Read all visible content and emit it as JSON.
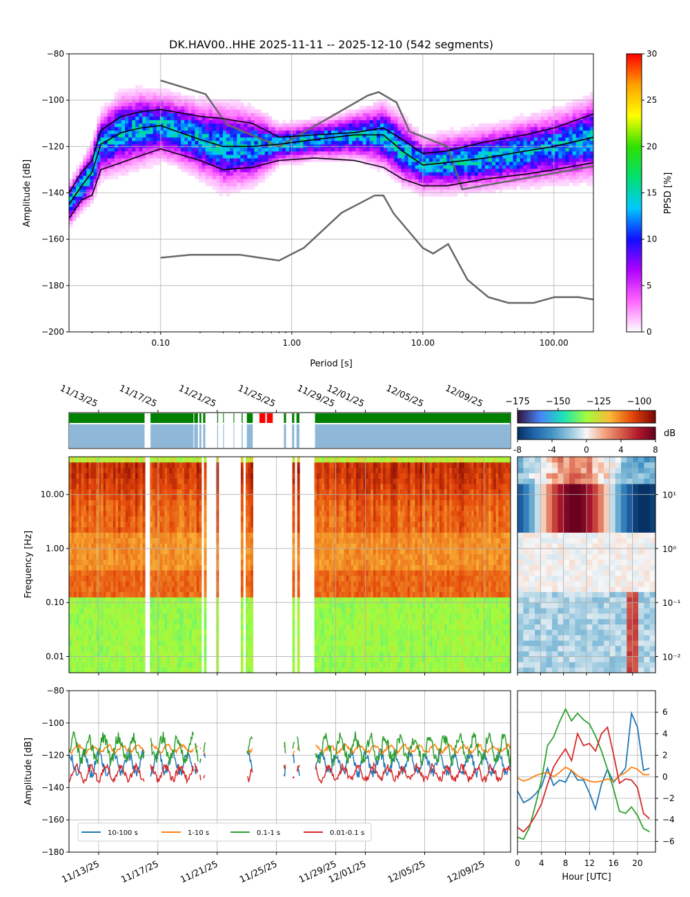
{
  "chart_data": [
    {
      "type": "heatmap",
      "name": "ppsd",
      "title": "DK.HAV00..HHE   2025-11-11 -- 2025-12-10  (542 segments)",
      "xlabel": "Period [s]",
      "ylabel": "Amplitude [dB]",
      "x_scale": "log",
      "xlim": [
        0.02,
        200
      ],
      "ylim": [
        -200,
        -80
      ],
      "x_ticks": [
        0.1,
        1,
        10,
        100
      ],
      "x_tick_labels": [
        "0.10",
        "1.00",
        "10.00",
        "100.00"
      ],
      "y_ticks": [
        -200,
        -180,
        -160,
        -140,
        -120,
        -100,
        -80
      ],
      "y_tick_labels": [
        "−200",
        "−180",
        "−160",
        "−140",
        "−120",
        "−100",
        "−80"
      ],
      "grid": true,
      "colorbar": {
        "label": "PPSD [%]",
        "range": [
          0,
          30
        ],
        "ticks": [
          "0",
          "5",
          "10",
          "15",
          "20",
          "25",
          "30"
        ],
        "colormap": [
          "#ffffff",
          "#ff66ff",
          "#b000ff",
          "#1010ff",
          "#00c8ff",
          "#00e070",
          "#30e000",
          "#ffff00",
          "#ffa000",
          "#ff0000"
        ]
      },
      "curves": [
        {
          "name": "nhnm",
          "color": "#666666",
          "x": [
            0.1,
            0.22,
            0.32,
            0.8,
            3.8,
            4.6,
            6.3,
            7.9,
            15.4,
            20,
            354.8
          ],
          "y": [
            -91.5,
            -97.4,
            -110.5,
            -120,
            -98,
            -96.5,
            -101,
            -113.5,
            -120,
            -138.5,
            -126
          ]
        },
        {
          "name": "nlnm",
          "color": "#666666",
          "x": [
            0.1,
            0.17,
            0.4,
            0.8,
            1.24,
            2.4,
            4.3,
            5,
            6,
            10,
            12,
            15.6,
            21.9,
            31.6,
            45,
            70,
            101,
            154,
            200
          ],
          "y": [
            -168,
            -166.7,
            -166.7,
            -169.2,
            -163.7,
            -148.6,
            -141.1,
            -141.1,
            -149,
            -163.8,
            -166.2,
            -162.1,
            -177.5,
            -185,
            -187.5,
            -187.5,
            -185,
            -185,
            -186
          ]
        },
        {
          "name": "percentile-upper",
          "color": "#000000",
          "x": [
            0.02,
            0.025,
            0.03,
            0.035,
            0.05,
            0.07,
            0.1,
            0.2,
            0.3,
            0.5,
            0.8,
            1.5,
            3,
            5,
            7,
            10,
            15,
            30,
            60,
            100,
            200
          ],
          "y": [
            -140,
            -131,
            -126,
            -113,
            -107,
            -105,
            -104,
            -107,
            -108,
            -110,
            -116,
            -115,
            -114,
            -112,
            -117,
            -123,
            -122,
            -118,
            -115,
            -112,
            -106
          ]
        },
        {
          "name": "percentile-median",
          "color": "#000000",
          "x": [
            0.02,
            0.025,
            0.03,
            0.035,
            0.05,
            0.07,
            0.1,
            0.2,
            0.3,
            0.5,
            0.8,
            1.5,
            3,
            5,
            7,
            10,
            15,
            30,
            60,
            100,
            200
          ],
          "y": [
            -145,
            -137,
            -131,
            -119,
            -114,
            -112,
            -111,
            -117,
            -120,
            -120,
            -119,
            -117,
            -115,
            -115,
            -122,
            -128,
            -127,
            -125,
            -122,
            -120,
            -116
          ]
        },
        {
          "name": "percentile-lower",
          "color": "#000000",
          "x": [
            0.02,
            0.025,
            0.03,
            0.035,
            0.05,
            0.07,
            0.1,
            0.2,
            0.3,
            0.5,
            0.8,
            1.5,
            3,
            5,
            7,
            10,
            15,
            30,
            60,
            100,
            200
          ],
          "y": [
            -151,
            -143,
            -141,
            -130,
            -127,
            -124,
            -121,
            -126,
            -130,
            -129,
            -126,
            -125,
            -126,
            -129,
            -134,
            -137,
            -137,
            -134,
            -132,
            -130,
            -127
          ]
        }
      ]
    },
    {
      "type": "table",
      "name": "data-availability",
      "description_free": true,
      "x_tick_labels": [
        "11/13/25",
        "11/17/25",
        "11/21/25",
        "11/25/25",
        "11/29/25",
        "12/01/25",
        "12/05/25",
        "12/09/25"
      ],
      "x_tick_days": [
        2,
        6,
        10,
        14,
        18,
        20,
        24,
        28
      ],
      "coverage": [
        [
          0,
          5.1
        ],
        [
          5.5,
          8.4
        ],
        [
          8.45,
          8.7
        ],
        [
          8.8,
          8.93
        ],
        [
          9.05,
          9.2
        ],
        [
          10.0,
          10.06
        ],
        [
          10.4,
          10.45
        ],
        [
          11.1,
          11.15
        ],
        [
          11.65,
          11.72
        ],
        [
          12.0,
          12.4
        ],
        [
          14.5,
          14.65
        ],
        [
          15.05,
          15.2
        ],
        [
          15.35,
          15.55
        ],
        [
          16.6,
          29.8
        ]
      ],
      "overlaps": [
        [
          12.85,
          13.25
        ],
        [
          13.35,
          13.75
        ]
      ],
      "colors": {
        "data": "#008000",
        "gaps_band": "#8fb8d8",
        "overlap": "#ff0000"
      }
    },
    {
      "type": "heatmap",
      "name": "spectrogram",
      "ylabel": "Frequency [Hz]",
      "y_scale": "log",
      "ylim": [
        0.005,
        50
      ],
      "y_ticks": [
        0.01,
        0.1,
        1,
        10
      ],
      "y_tick_labels": [
        "0.01",
        "0.10",
        "1.00",
        "10.00"
      ],
      "colorbar": {
        "range": [
          -175,
          -90
        ],
        "ticks": [
          "−175",
          "−150",
          "−125",
          "−100"
        ],
        "colormap": [
          "#30123b",
          "#4686fb",
          "#1ae4b6",
          "#a2fc3c",
          "#faba39",
          "#e4460a",
          "#7a0403"
        ]
      }
    },
    {
      "type": "heatmap",
      "name": "daily-deviation",
      "y_scale": "log",
      "y_tick_labels": [
        "10¹",
        "10⁰",
        "10⁻¹",
        "10⁻²"
      ],
      "x_ticks": [
        0,
        4,
        8,
        12,
        16,
        20
      ],
      "colorbar": {
        "label": "dB",
        "range": [
          -8,
          8
        ],
        "ticks": [
          "-8",
          "-4",
          "0",
          "4",
          "8"
        ],
        "colormap": [
          "#053061",
          "#2166ac",
          "#4393c3",
          "#92c5de",
          "#f7f7f7",
          "#f4a582",
          "#d6604d",
          "#b2182b",
          "#67001f"
        ]
      }
    },
    {
      "type": "line",
      "name": "band-amplitude",
      "ylabel": "Amplitude [dB]",
      "ylim": [
        -180,
        -80
      ],
      "y_tick_labels": [
        "−180",
        "−160",
        "−140",
        "−120",
        "−100",
        "−80"
      ],
      "x_tick_labels": [
        "11/13/25",
        "11/17/25",
        "11/21/25",
        "11/25/25",
        "11/29/25",
        "12/01/25",
        "12/05/25",
        "12/09/25"
      ],
      "legend": "lower-left",
      "series": [
        {
          "name": "10-100 s",
          "color": "#1f77b4",
          "mean": -125,
          "amp": 6
        },
        {
          "name": "1-10 s",
          "color": "#ff7f0e",
          "mean": -116,
          "amp": 2
        },
        {
          "name": "0.1-1 s",
          "color": "#2ca02c",
          "mean": -116,
          "amp": 7
        },
        {
          "name": "0.01-0.1 s",
          "color": "#d62728",
          "mean": -131,
          "amp": 4
        }
      ]
    },
    {
      "type": "line",
      "name": "hourly-deviation",
      "xlabel": "Hour [UTC]",
      "x_ticks": [
        0,
        4,
        8,
        12,
        16,
        20
      ],
      "x_tick_labels": [
        "0",
        "4",
        "8",
        "12",
        "16",
        "20"
      ],
      "ylim": [
        -7,
        8
      ],
      "y_ticks": [
        -6,
        -4,
        -2,
        0,
        2,
        4,
        6
      ],
      "y_tick_labels": [
        "−6",
        "−4",
        "−2",
        "0",
        "2",
        "4",
        "6"
      ],
      "hours": [
        0,
        1,
        2,
        3,
        4,
        5,
        6,
        7,
        8,
        9,
        10,
        11,
        12,
        13,
        14,
        15,
        16,
        17,
        18,
        19,
        20,
        21,
        22
      ],
      "series": [
        {
          "name": "10-100 s",
          "color": "#1f77b4",
          "values": [
            -1.3,
            -2.4,
            -2.1,
            -1.6,
            -0.9,
            0.8,
            -0.8,
            -0.3,
            -0.5,
            0.6,
            -0.3,
            -0.3,
            -1.5,
            -3.0,
            -0.7,
            0.7,
            -0.5,
            0.1,
            0.8,
            5.9,
            4.6,
            0.6,
            0.8
          ]
        },
        {
          "name": "1-10 s",
          "color": "#ff7f0e",
          "values": [
            -0.1,
            -0.4,
            -0.2,
            0.1,
            0.3,
            0.4,
            0.0,
            0.4,
            0.9,
            0.6,
            0.1,
            -0.2,
            -0.4,
            -0.5,
            -0.4,
            -0.2,
            -0.4,
            0.1,
            0.4,
            0.9,
            0.7,
            0.2,
            0.2
          ]
        },
        {
          "name": "0.1-1 s",
          "color": "#2ca02c",
          "values": [
            -5.6,
            -5.8,
            -4.7,
            -2.6,
            -0.3,
            2.9,
            3.7,
            5.1,
            6.3,
            5.2,
            5.9,
            5.3,
            4.9,
            3.8,
            2.4,
            0.7,
            -1.1,
            -3.2,
            -3.4,
            -2.8,
            -3.6,
            -4.8,
            -5.1
          ]
        },
        {
          "name": "0.01-0.1 s",
          "color": "#d62728",
          "values": [
            -4.7,
            -5.1,
            -4.5,
            -3.6,
            -2.5,
            -0.7,
            0.9,
            1.8,
            2.6,
            1.5,
            4.0,
            2.9,
            3.1,
            2.4,
            4.0,
            4.6,
            2.1,
            -0.6,
            -0.2,
            -0.3,
            -1.0,
            -3.4,
            -3.9
          ]
        }
      ]
    }
  ]
}
